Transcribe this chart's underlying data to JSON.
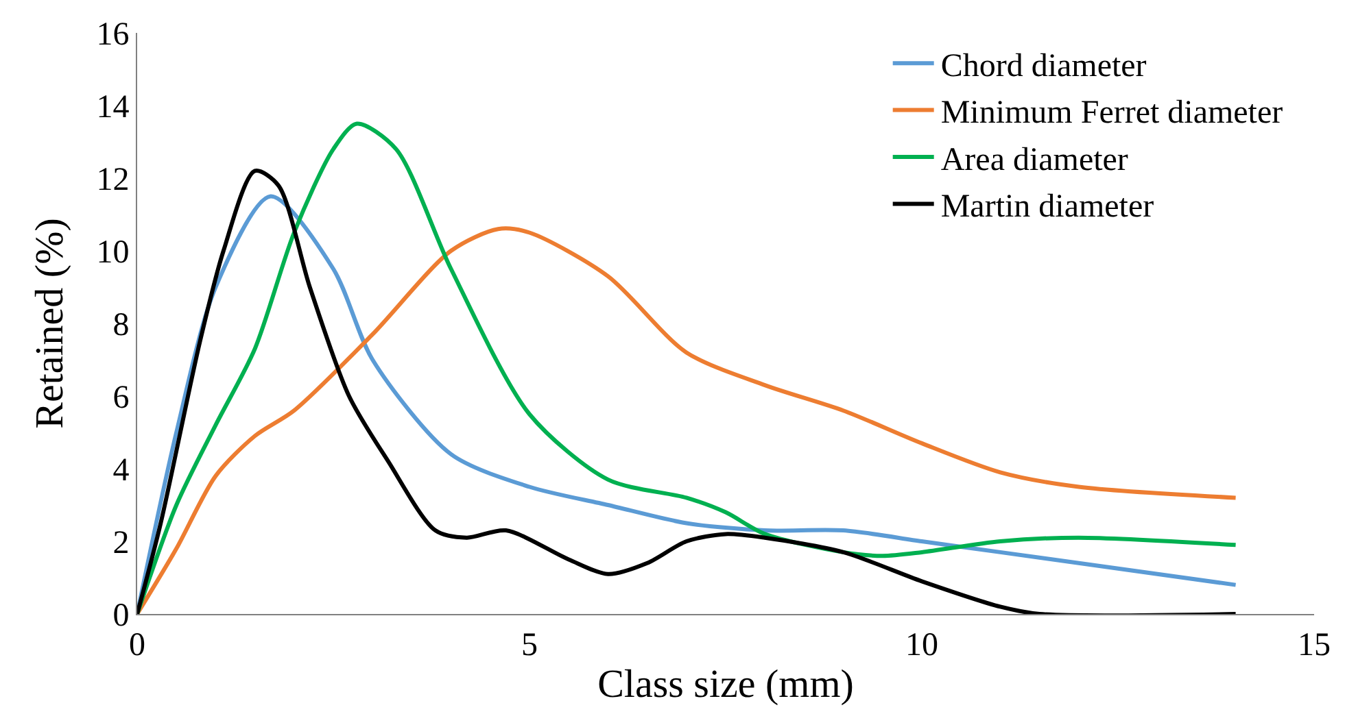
{
  "chart_data": {
    "type": "line",
    "xlabel": "Class size (mm)",
    "ylabel": "Retained (%)",
    "xlim": [
      0,
      15
    ],
    "xticks": [
      0,
      5,
      10,
      15
    ],
    "ylim": [
      0,
      16
    ],
    "yticks": [
      0,
      2,
      4,
      6,
      8,
      10,
      12,
      14,
      16
    ],
    "legend": "top right",
    "marker": "none",
    "line_style": "solid",
    "series": [
      {
        "name": "Chord diameter",
        "color": "#5b9bd5",
        "x": [
          0,
          0.5,
          1,
          1.7,
          2.5,
          3,
          4,
          5,
          6,
          7,
          8,
          9,
          10,
          11,
          12,
          14
        ],
        "values": [
          0,
          5.0,
          9.0,
          11.5,
          9.5,
          7,
          4.4,
          3.5,
          3.0,
          2.5,
          2.3,
          2.3,
          2.0,
          1.7,
          1.4,
          0.8
        ]
      },
      {
        "name": "Minimum Ferret diameter",
        "color": "#ed7d31",
        "x": [
          0,
          0.5,
          1,
          1.5,
          2,
          3,
          4,
          4.6,
          5,
          6,
          7,
          8,
          9,
          10,
          11,
          12,
          14
        ],
        "values": [
          0,
          1.8,
          3.8,
          4.9,
          5.6,
          7.7,
          10.0,
          10.6,
          10.5,
          9.3,
          7.2,
          6.3,
          5.6,
          4.7,
          3.9,
          3.5,
          3.2
        ]
      },
      {
        "name": "Area diameter",
        "color": "#00b050",
        "x": [
          0,
          0.5,
          1,
          1.5,
          2,
          2.5,
          2.8,
          3.3,
          4,
          5,
          6,
          7,
          7.5,
          8,
          9,
          9.5,
          10,
          11,
          12,
          14
        ],
        "values": [
          0,
          3.0,
          5.2,
          7.3,
          10.5,
          12.8,
          13.5,
          12.8,
          9.5,
          5.5,
          3.7,
          3.2,
          2.8,
          2.2,
          1.7,
          1.6,
          1.7,
          2.0,
          2.1,
          1.9
        ]
      },
      {
        "name": "Martin diameter",
        "color": "#000000",
        "x": [
          0,
          0.3,
          0.8,
          1.1,
          1.5,
          1.8,
          2.2,
          2.7,
          3.2,
          3.8,
          4.2,
          4.7,
          5.5,
          6,
          6.5,
          7,
          7.5,
          8,
          9,
          10,
          11,
          11.5,
          14
        ],
        "values": [
          0,
          2.5,
          7.5,
          10.0,
          12.2,
          11.8,
          9.0,
          6.0,
          4.2,
          2.3,
          2.1,
          2.3,
          1.5,
          1.1,
          1.4,
          2.0,
          2.2,
          2.1,
          1.7,
          0.9,
          0.2,
          0,
          0
        ]
      }
    ]
  }
}
